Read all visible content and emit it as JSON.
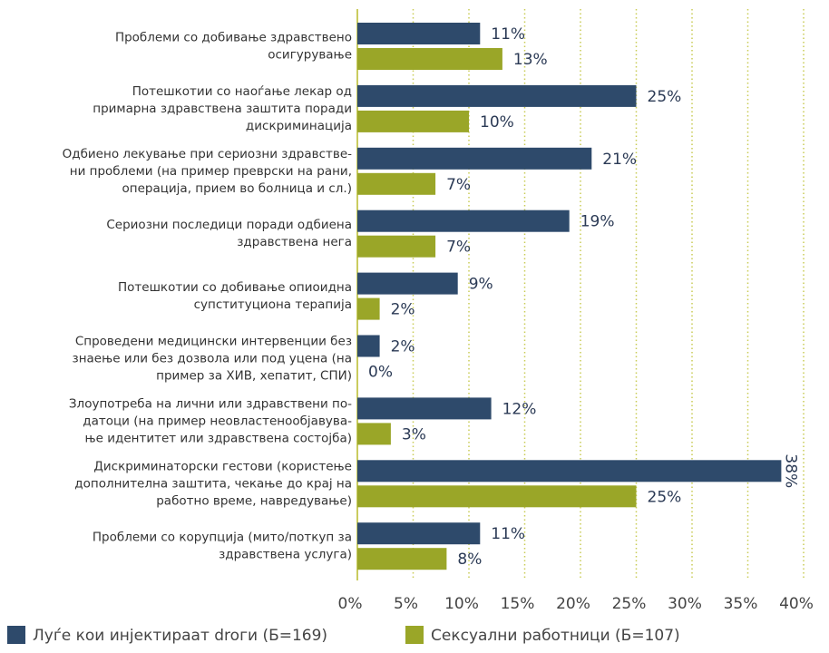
{
  "chart_data": {
    "type": "barh",
    "categories": [
      [
        "Проблеми со добивање здравствено",
        "осигурување"
      ],
      [
        "Потешкотии со наоѓање лекар од",
        "примарна здравствена заштита поради",
        "дискриминација"
      ],
      [
        "Одбиено лекување при сериозни здравстве-",
        "ни проблеми (на пример преврски на рани,",
        "операција, прием во болница и сл.)"
      ],
      [
        "Сериозни последици поради одбиена",
        "здравствена нега"
      ],
      [
        "Потешкотии со добивање опиоидна",
        "супституциона терапија"
      ],
      [
        "Спроведени медицински интервенции без",
        "знаење или без дозвола или под уцена (на",
        "пример за ХИВ, хепатит, СПИ)"
      ],
      [
        "Злоупотреба на лични или здравствени по-",
        "датоци (на пример неовластенообјавува-",
        "ње идентитет или здравствена состојба)"
      ],
      [
        "Дискриминаторски гестови (користење",
        "дополнителна заштита, чекање до крај на",
        "работно време, навредување)"
      ],
      [
        "Проблеми со корупција (мито/поткуп за",
        "здравствена услуга)"
      ]
    ],
    "series": [
      {
        "name": "Луѓе кои инјектираат droги (Б=169)",
        "color": "#2e4a6b",
        "values": [
          11,
          25,
          21,
          19,
          9,
          2,
          12,
          38,
          11
        ],
        "value_labels": [
          "11%",
          "25%",
          "21%",
          "19%",
          "9%",
          "2%",
          "12%",
          "38%",
          "11%"
        ]
      },
      {
        "name": "Сексуални работници (Б=107)",
        "color": "#9aa628",
        "values": [
          13,
          10,
          7,
          7,
          2,
          0,
          3,
          25,
          8
        ],
        "value_labels": [
          "13%",
          "10%",
          "7%",
          "7%",
          "2%",
          "0%",
          "3%",
          "25%",
          "8%"
        ]
      }
    ],
    "xlim": [
      0,
      40
    ],
    "xticks": [
      {
        "value": 0,
        "label": "0%"
      },
      {
        "value": 5,
        "label": "5%"
      },
      {
        "value": 10,
        "label": "10%"
      },
      {
        "value": 15,
        "label": "15%"
      },
      {
        "value": 20,
        "label": "20%"
      },
      {
        "value": 25,
        "label": "25%"
      },
      {
        "value": 30,
        "label": "30%"
      },
      {
        "value": 35,
        "label": "35%"
      },
      {
        "value": 40,
        "label": "40%"
      }
    ],
    "grid": true
  }
}
